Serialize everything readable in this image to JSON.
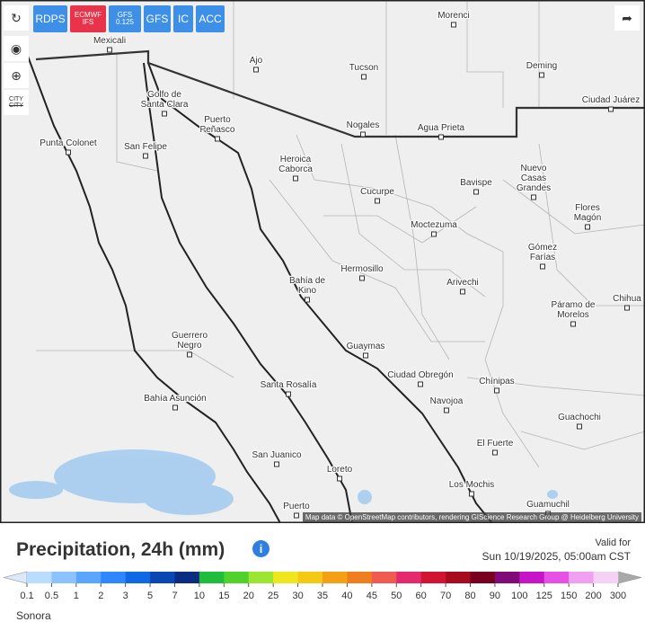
{
  "toolbar": {
    "models": [
      "RDPS",
      "GFS",
      "IC",
      "ACC"
    ],
    "ecmwf": [
      "ECMWF",
      "IFS"
    ],
    "gfs_hr": [
      "GFS",
      "0.125"
    ],
    "city": [
      "CITY",
      "CITY"
    ]
  },
  "map": {
    "attribution": "Map data © OpenStreetMap contributors, rendering GIScience Research Group @ Heidelberg University",
    "cities": [
      [
        "Morenci"
      ],
      [
        "Ajo"
      ],
      [
        "Tucson"
      ],
      [
        "Deming"
      ],
      [
        "Ciudad Juárez"
      ],
      [
        "Mexicali"
      ],
      [
        "Golfo de",
        "Santa Clara"
      ],
      [
        "Puerto",
        "Peñasco"
      ],
      [
        "Punta Colonet"
      ],
      [
        "San Felipe"
      ],
      [
        "Nogales"
      ],
      [
        "Agua Prieta"
      ],
      [
        "Heroica",
        "Caborca"
      ],
      [
        "Nuevo",
        "Casas",
        "Grandes"
      ],
      [
        "Bavispe"
      ],
      [
        "Cucurpe"
      ],
      [
        "Flores",
        "Magón"
      ],
      [
        "Moctezuma"
      ],
      [
        "Gómez",
        "Farías"
      ],
      [
        "Hermosillo"
      ],
      [
        "Bahía de",
        "Kino"
      ],
      [
        "Arivechi"
      ],
      [
        "Chihua"
      ],
      [
        "Páramo de",
        "Morelos"
      ],
      [
        "Guerrero",
        "Negro"
      ],
      [
        "Guaymas"
      ],
      [
        "Santa Rosalía"
      ],
      [
        "Ciudad Obregón"
      ],
      [
        "Chínipas"
      ],
      [
        "Bahía Asunción"
      ],
      [
        "Navojoa"
      ],
      [
        "Guachochi"
      ],
      [
        "El Fuerte"
      ],
      [
        "San Juanico"
      ],
      [
        "Loreto"
      ],
      [
        "Los Mochis"
      ],
      [
        "Puerto"
      ],
      [
        "Guamuchil"
      ]
    ]
  },
  "legend": {
    "title": "Precipitation, 24h (mm)",
    "valid_label": "Valid for",
    "valid_time": "Sun 10/19/2025, 05:00am CST",
    "region": "Sonora",
    "ticks": [
      "0.1",
      "0.5",
      "1",
      "2",
      "3",
      "5",
      "7",
      "10",
      "15",
      "20",
      "25",
      "30",
      "35",
      "40",
      "45",
      "50",
      "60",
      "70",
      "80",
      "90",
      "100",
      "125",
      "150",
      "200",
      "300"
    ],
    "under_color": "#dce9f8",
    "over_color": "#a9a9a9",
    "colors": [
      "#b9dcff",
      "#8cc3ff",
      "#5aa5ff",
      "#2d87ff",
      "#0f69e6",
      "#0a46b4",
      "#0a2d82",
      "#1ebe3c",
      "#50d22d",
      "#9be632",
      "#f0e61e",
      "#f5c814",
      "#f5a014",
      "#f07d1e",
      "#f05a50",
      "#e6286e",
      "#d21432",
      "#aa0a1e",
      "#78001e",
      "#820a78",
      "#c814c8",
      "#e650e6",
      "#f0a0f0",
      "#f5d2f5"
    ]
  }
}
